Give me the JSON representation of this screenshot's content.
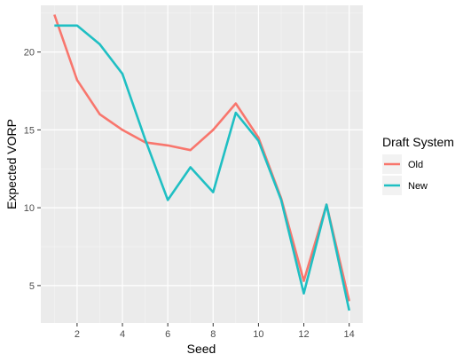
{
  "chart_data": {
    "type": "line",
    "xlabel": "Seed",
    "ylabel": "Expected VORP",
    "xlim": [
      0.4,
      14.6
    ],
    "ylim": [
      2.6,
      23.0
    ],
    "x_ticks": [
      2,
      4,
      6,
      8,
      10,
      12,
      14
    ],
    "y_ticks": [
      5,
      10,
      15,
      20
    ],
    "x": [
      1,
      2,
      3,
      4,
      5,
      6,
      7,
      8,
      9,
      10,
      11,
      12,
      13,
      14
    ],
    "series": [
      {
        "name": "Old",
        "color": "#f8766d",
        "values": [
          22.4,
          18.2,
          16.0,
          15.0,
          14.2,
          14.0,
          13.7,
          15.0,
          16.7,
          14.5,
          10.6,
          5.3,
          10.2,
          4.0
        ]
      },
      {
        "name": "New",
        "color": "#1fbfc3",
        "values": [
          21.7,
          21.7,
          20.5,
          18.6,
          14.4,
          10.5,
          12.6,
          11.0,
          16.1,
          14.3,
          10.5,
          4.5,
          10.2,
          3.4
        ]
      }
    ],
    "legend": {
      "title": "Draft System",
      "position": "right"
    },
    "grid": true,
    "panel_background": "#ebebeb"
  }
}
